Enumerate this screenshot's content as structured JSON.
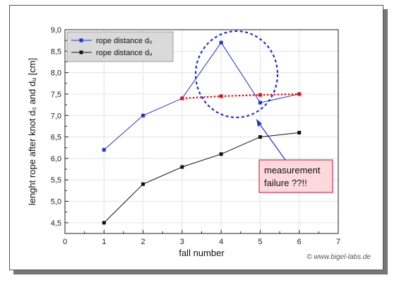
{
  "chart_data": {
    "type": "line",
    "title": "",
    "xlabel": "fall number",
    "ylabel": "lenght rope after knot d₀ and dᵤ [cm]",
    "xlim": [
      0,
      7
    ],
    "ylim": [
      4.25,
      9.0
    ],
    "x_ticks": [
      "0",
      "1",
      "2",
      "3",
      "4",
      "5",
      "6",
      "7"
    ],
    "y_ticks": [
      "4,5",
      "5,0",
      "5,5",
      "6,0",
      "6,5",
      "7,0",
      "7,5",
      "8,0",
      "8,5",
      "9,0"
    ],
    "grid": true,
    "legend_position": "top-left",
    "series": [
      {
        "name": "rope distance d₀",
        "color": "#1f2fd8",
        "marker": "square",
        "x": [
          1,
          2,
          3,
          4,
          5,
          6
        ],
        "y": [
          6.2,
          7.0,
          7.4,
          8.7,
          7.3,
          7.5
        ]
      },
      {
        "name": "rope distance dᵤ",
        "color": "#111111",
        "marker": "square",
        "x": [
          1,
          2,
          3,
          4,
          5,
          6
        ],
        "y": [
          4.5,
          5.4,
          5.8,
          6.1,
          6.5,
          6.6
        ]
      }
    ],
    "corrected_line": {
      "color": "#e01010",
      "style": "dotted",
      "x": [
        3,
        4,
        5,
        6
      ],
      "y": [
        7.4,
        7.45,
        7.48,
        7.5
      ]
    },
    "annotation": {
      "text_lines": [
        "measurement",
        "failure ??!!"
      ],
      "box_color": "#fdd8dc",
      "border_color": "#c01030",
      "circle_color": "#1f2fd8"
    },
    "copyright": "© www.bigel-labs.de"
  }
}
